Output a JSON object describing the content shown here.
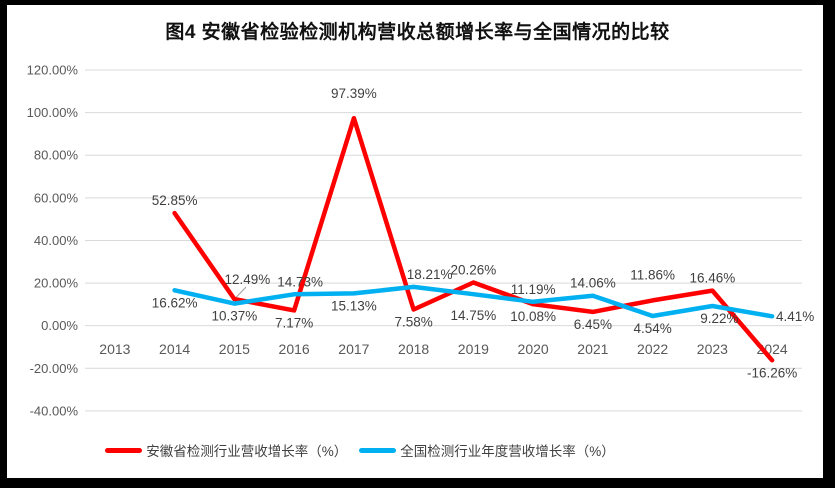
{
  "colors": {
    "frame": "#000000",
    "background": "#ffffff",
    "anhui_red": "#FF0000",
    "national_blue": "#00B0F0",
    "grid": "#D9D9D9",
    "axis_text": "#595959",
    "label_text": "#404040",
    "leader": "#A6A6A6"
  },
  "chart_data": {
    "type": "line",
    "title": "图4 安徽省检验检测机构营收总额增长率与全国情况的比较",
    "categories": [
      "2013",
      "2014",
      "2015",
      "2016",
      "2017",
      "2018",
      "2019",
      "2020",
      "2021",
      "2022",
      "2023",
      "2024"
    ],
    "series": [
      {
        "id": "anhui",
        "name": "安徽省检测行业营收增长率（%）",
        "color": "#FF0000",
        "values": [
          null,
          52.85,
          12.49,
          7.17,
          97.39,
          7.58,
          20.26,
          10.08,
          6.45,
          11.86,
          16.46,
          -16.26
        ]
      },
      {
        "id": "national",
        "name": "全国检测行业年度营收增长率（%）",
        "color": "#00B0F0",
        "values": [
          null,
          16.62,
          10.37,
          14.73,
          15.13,
          18.21,
          14.75,
          11.19,
          14.06,
          4.54,
          9.22,
          4.41
        ]
      }
    ],
    "xlabel": "",
    "ylabel": "",
    "ylim": [
      -40,
      120
    ],
    "ytick_step": 20,
    "ytick_labels": [
      "120.00%",
      "100.00%",
      "80.00%",
      "60.00%",
      "40.00%",
      "20.00%",
      "0.00%",
      "-20.00%",
      "-40.00%"
    ],
    "grid": true,
    "data_labels": true,
    "label_format": "0.00%",
    "legend_position": "bottom"
  }
}
